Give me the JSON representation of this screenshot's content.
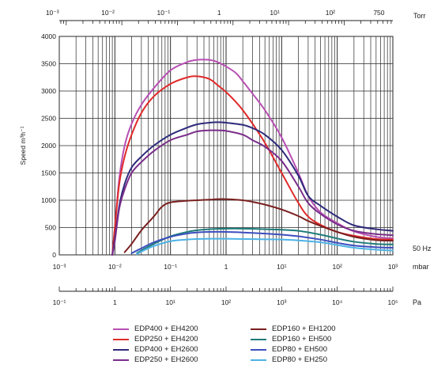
{
  "chart_data": {
    "type": "line",
    "xscale": "log",
    "xlim": [
      0.001,
      1000
    ],
    "ylim": [
      0,
      4000
    ],
    "yticks": [
      0,
      500,
      1000,
      1500,
      2000,
      2500,
      3000,
      3500,
      4000
    ],
    "ylabel": "Speed m³h⁻¹",
    "grid": true,
    "axes": {
      "torr": {
        "label": "Torr",
        "ticks": [
          {
            "value": 0.00075,
            "label": "10⁻³"
          },
          {
            "value": 0.0075,
            "label": "10⁻²"
          },
          {
            "value": 0.075,
            "label": "10⁻¹"
          },
          {
            "value": 0.75,
            "label": "1"
          },
          {
            "value": 7.5,
            "label": "10¹"
          },
          {
            "value": 75,
            "label": "10²"
          },
          {
            "value": 562.5,
            "label": "750"
          }
        ]
      },
      "mbar": {
        "label": "mbar",
        "ticks": [
          {
            "value": 0.001,
            "label": "10⁻³"
          },
          {
            "value": 0.01,
            "label": "10⁻²"
          },
          {
            "value": 0.1,
            "label": "10⁻¹"
          },
          {
            "value": 1,
            "label": "1"
          },
          {
            "value": 10,
            "label": "10¹"
          },
          {
            "value": 100,
            "label": "10²"
          },
          {
            "value": 1000,
            "label": "10³"
          }
        ]
      },
      "pa": {
        "label": "Pa",
        "ticks": [
          {
            "value": 0.001,
            "label": "10⁻¹"
          },
          {
            "value": 0.01,
            "label": "1"
          },
          {
            "value": 0.1,
            "label": "10¹"
          },
          {
            "value": 1,
            "label": "10²"
          },
          {
            "value": 10,
            "label": "10³"
          },
          {
            "value": 100,
            "label": "10⁴"
          },
          {
            "value": 1000,
            "label": "10⁵"
          }
        ]
      },
      "frequency_label": "50 Hz"
    },
    "series": [
      {
        "name": "EDP400 + EH4200",
        "color": "#b84fb3",
        "x": [
          0.009,
          0.01,
          0.012,
          0.015,
          0.02,
          0.03,
          0.05,
          0.1,
          0.2,
          0.3,
          0.5,
          0.7,
          1,
          1.5,
          2,
          3,
          5,
          10,
          20,
          30,
          50,
          100,
          200,
          500,
          1000
        ],
        "y": [
          0,
          500,
          1400,
          2000,
          2400,
          2750,
          3050,
          3380,
          3530,
          3570,
          3570,
          3530,
          3450,
          3330,
          3180,
          2950,
          2650,
          2150,
          1500,
          1080,
          780,
          580,
          430,
          330,
          300
        ]
      },
      {
        "name": "EDP250 + EH4200",
        "color": "#e02a2a",
        "x": [
          0.009,
          0.01,
          0.012,
          0.015,
          0.02,
          0.03,
          0.05,
          0.1,
          0.2,
          0.3,
          0.5,
          0.7,
          1,
          1.5,
          2,
          3,
          5,
          10,
          20,
          30,
          50,
          100,
          200,
          500,
          1000
        ],
        "y": [
          0,
          500,
          1300,
          1800,
          2200,
          2600,
          2900,
          3130,
          3250,
          3270,
          3220,
          3110,
          2980,
          2800,
          2650,
          2400,
          2050,
          1500,
          950,
          700,
          550,
          420,
          350,
          290,
          280
        ]
      },
      {
        "name": "EDP400 + EH2600",
        "color": "#2e2a7a",
        "x": [
          0.009,
          0.01,
          0.012,
          0.015,
          0.02,
          0.03,
          0.05,
          0.1,
          0.2,
          0.3,
          0.5,
          0.7,
          1,
          2,
          3,
          5,
          10,
          20,
          30,
          50,
          100,
          200,
          500,
          1000
        ],
        "y": [
          0,
          300,
          900,
          1300,
          1600,
          1800,
          2000,
          2200,
          2330,
          2390,
          2420,
          2430,
          2420,
          2380,
          2320,
          2200,
          1920,
          1450,
          1080,
          900,
          700,
          540,
          470,
          440
        ]
      },
      {
        "name": "EDP250 + EH2600",
        "color": "#7a2d8a",
        "x": [
          0.009,
          0.01,
          0.012,
          0.015,
          0.02,
          0.03,
          0.05,
          0.1,
          0.2,
          0.3,
          0.5,
          0.7,
          1,
          2,
          3,
          5,
          10,
          20,
          30,
          50,
          100,
          200,
          500,
          1000
        ],
        "y": [
          0,
          250,
          850,
          1200,
          1500,
          1700,
          1900,
          2100,
          2200,
          2260,
          2280,
          2280,
          2270,
          2200,
          2100,
          1980,
          1720,
          1250,
          950,
          750,
          560,
          440,
          380,
          360
        ]
      },
      {
        "name": "EDP160 + EH1200",
        "color": "#7a1f1f",
        "x": [
          0.015,
          0.02,
          0.03,
          0.05,
          0.07,
          0.1,
          0.2,
          0.3,
          0.5,
          0.7,
          1,
          2,
          3,
          5,
          10,
          20,
          30,
          50,
          100,
          200,
          500,
          1000
        ],
        "y": [
          50,
          200,
          450,
          700,
          880,
          960,
          990,
          1000,
          1010,
          1020,
          1020,
          1000,
          970,
          920,
          830,
          710,
          620,
          530,
          420,
          330,
          270,
          260
        ]
      },
      {
        "name": "EDP160 + EH500",
        "color": "#1f7b7b",
        "x": [
          0.025,
          0.03,
          0.05,
          0.1,
          0.2,
          0.3,
          0.5,
          1,
          2,
          5,
          10,
          20,
          50,
          100,
          200,
          500,
          1000
        ],
        "y": [
          30,
          80,
          200,
          340,
          420,
          450,
          470,
          480,
          480,
          470,
          460,
          440,
          370,
          300,
          240,
          200,
          190
        ]
      },
      {
        "name": "EDP80 + EH500",
        "color": "#3d4fbf",
        "x": [
          0.02,
          0.03,
          0.05,
          0.1,
          0.2,
          0.3,
          0.5,
          1,
          2,
          5,
          10,
          20,
          50,
          100,
          200,
          500,
          1000
        ],
        "y": [
          30,
          120,
          230,
          330,
          390,
          410,
          420,
          420,
          410,
          390,
          370,
          340,
          280,
          220,
          170,
          140,
          130
        ]
      },
      {
        "name": "EDP80 + EH250",
        "color": "#4db3e6",
        "x": [
          0.025,
          0.03,
          0.05,
          0.1,
          0.2,
          0.3,
          0.5,
          1,
          2,
          5,
          10,
          20,
          50,
          100,
          200,
          500,
          1000
        ],
        "y": [
          10,
          60,
          160,
          250,
          280,
          290,
          295,
          295,
          290,
          285,
          280,
          265,
          230,
          180,
          130,
          95,
          80
        ]
      }
    ]
  }
}
